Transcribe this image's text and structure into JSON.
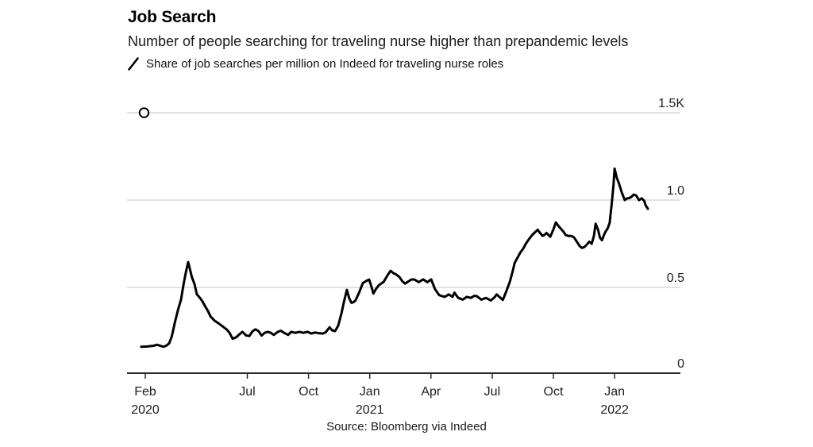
{
  "colors": {
    "background": "#ffffff",
    "line": "#000000",
    "grid": "#d9d9d9",
    "axis": "#2b2b2b",
    "text": "#1f1f1f",
    "marker_fill": "#ffffff",
    "marker_stroke": "#000000"
  },
  "chart_data": {
    "type": "line",
    "title": "Job Search",
    "subtitle": "Number of people searching for traveling nurse higher than prepandemic levels",
    "source": "Source: Bloomberg via Indeed",
    "legend_position": "top-left",
    "legend_marker": "slash-icon",
    "grid": "horizontal-only",
    "x_unit": "months since Feb 2020",
    "xlim": [
      -0.9,
      26.2
    ],
    "ylim": [
      0,
      1.5
    ],
    "y_ticks": [
      {
        "v": 0,
        "label": "0"
      },
      {
        "v": 0.5,
        "label": "0.5"
      },
      {
        "v": 1.0,
        "label": "1.0"
      },
      {
        "v": 1.5,
        "label": "1.5K"
      }
    ],
    "x_ticks": [
      {
        "m": 0,
        "month": "Feb",
        "year": "2020"
      },
      {
        "m": 5,
        "month": "Jul",
        "year": ""
      },
      {
        "m": 8,
        "month": "Oct",
        "year": ""
      },
      {
        "m": 11,
        "month": "Jan",
        "year": "2021"
      },
      {
        "m": 14,
        "month": "Apr",
        "year": ""
      },
      {
        "m": 17,
        "month": "Jul",
        "year": ""
      },
      {
        "m": 20,
        "month": "Oct",
        "year": ""
      },
      {
        "m": 23,
        "month": "Jan",
        "year": "2022"
      }
    ],
    "marker": {
      "m": -0.06,
      "v": 1.5
    },
    "series": [
      {
        "name": "Share of job searches per million on Indeed for traveling nurse roles",
        "points": [
          [
            -0.2,
            0.16
          ],
          [
            0.1,
            0.162
          ],
          [
            0.4,
            0.166
          ],
          [
            0.58,
            0.172
          ],
          [
            0.75,
            0.165
          ],
          [
            0.9,
            0.16
          ],
          [
            1.05,
            0.168
          ],
          [
            1.17,
            0.18
          ],
          [
            1.3,
            0.22
          ],
          [
            1.45,
            0.3
          ],
          [
            1.6,
            0.37
          ],
          [
            1.75,
            0.43
          ],
          [
            1.88,
            0.52
          ],
          [
            1.97,
            0.575
          ],
          [
            2.1,
            0.645
          ],
          [
            2.2,
            0.6
          ],
          [
            2.28,
            0.56
          ],
          [
            2.41,
            0.52
          ],
          [
            2.53,
            0.46
          ],
          [
            2.68,
            0.44
          ],
          [
            2.8,
            0.42
          ],
          [
            2.92,
            0.395
          ],
          [
            3.07,
            0.365
          ],
          [
            3.19,
            0.335
          ],
          [
            3.39,
            0.31
          ],
          [
            3.58,
            0.295
          ],
          [
            3.85,
            0.272
          ],
          [
            4.0,
            0.258
          ],
          [
            4.13,
            0.24
          ],
          [
            4.28,
            0.206
          ],
          [
            4.45,
            0.214
          ],
          [
            4.6,
            0.23
          ],
          [
            4.76,
            0.246
          ],
          [
            4.94,
            0.225
          ],
          [
            5.1,
            0.222
          ],
          [
            5.25,
            0.248
          ],
          [
            5.4,
            0.26
          ],
          [
            5.55,
            0.25
          ],
          [
            5.7,
            0.224
          ],
          [
            5.85,
            0.24
          ],
          [
            6.0,
            0.246
          ],
          [
            6.15,
            0.24
          ],
          [
            6.3,
            0.228
          ],
          [
            6.5,
            0.246
          ],
          [
            6.65,
            0.252
          ],
          [
            6.8,
            0.24
          ],
          [
            7.0,
            0.228
          ],
          [
            7.15,
            0.246
          ],
          [
            7.35,
            0.24
          ],
          [
            7.55,
            0.246
          ],
          [
            7.75,
            0.24
          ],
          [
            7.95,
            0.246
          ],
          [
            8.14,
            0.236
          ],
          [
            8.32,
            0.242
          ],
          [
            8.5,
            0.238
          ],
          [
            8.7,
            0.236
          ],
          [
            8.85,
            0.244
          ],
          [
            9.03,
            0.272
          ],
          [
            9.16,
            0.254
          ],
          [
            9.3,
            0.25
          ],
          [
            9.45,
            0.28
          ],
          [
            9.61,
            0.35
          ],
          [
            9.75,
            0.425
          ],
          [
            9.88,
            0.486
          ],
          [
            9.99,
            0.44
          ],
          [
            10.1,
            0.412
          ],
          [
            10.2,
            0.415
          ],
          [
            10.3,
            0.425
          ],
          [
            10.48,
            0.47
          ],
          [
            10.66,
            0.525
          ],
          [
            10.85,
            0.538
          ],
          [
            10.97,
            0.545
          ],
          [
            11.08,
            0.505
          ],
          [
            11.18,
            0.465
          ],
          [
            11.3,
            0.49
          ],
          [
            11.44,
            0.512
          ],
          [
            11.56,
            0.522
          ],
          [
            11.68,
            0.532
          ],
          [
            11.85,
            0.565
          ],
          [
            12.02,
            0.595
          ],
          [
            12.16,
            0.582
          ],
          [
            12.28,
            0.575
          ],
          [
            12.45,
            0.56
          ],
          [
            12.6,
            0.535
          ],
          [
            12.73,
            0.522
          ],
          [
            12.93,
            0.537
          ],
          [
            13.06,
            0.546
          ],
          [
            13.2,
            0.545
          ],
          [
            13.4,
            0.53
          ],
          [
            13.62,
            0.546
          ],
          [
            13.82,
            0.53
          ],
          [
            14.01,
            0.546
          ],
          [
            14.2,
            0.49
          ],
          [
            14.4,
            0.456
          ],
          [
            14.55,
            0.45
          ],
          [
            14.68,
            0.446
          ],
          [
            14.87,
            0.46
          ],
          [
            15.06,
            0.446
          ],
          [
            15.15,
            0.47
          ],
          [
            15.34,
            0.44
          ],
          [
            15.56,
            0.43
          ],
          [
            15.76,
            0.446
          ],
          [
            15.96,
            0.44
          ],
          [
            16.12,
            0.452
          ],
          [
            16.25,
            0.45
          ],
          [
            16.47,
            0.43
          ],
          [
            16.7,
            0.44
          ],
          [
            16.93,
            0.425
          ],
          [
            17.1,
            0.442
          ],
          [
            17.22,
            0.46
          ],
          [
            17.36,
            0.445
          ],
          [
            17.52,
            0.428
          ],
          [
            17.7,
            0.48
          ],
          [
            17.86,
            0.53
          ],
          [
            18.0,
            0.59
          ],
          [
            18.1,
            0.64
          ],
          [
            18.25,
            0.672
          ],
          [
            18.38,
            0.7
          ],
          [
            18.52,
            0.722
          ],
          [
            18.65,
            0.75
          ],
          [
            18.8,
            0.776
          ],
          [
            18.96,
            0.8
          ],
          [
            19.1,
            0.816
          ],
          [
            19.23,
            0.83
          ],
          [
            19.36,
            0.81
          ],
          [
            19.47,
            0.795
          ],
          [
            19.58,
            0.802
          ],
          [
            19.66,
            0.812
          ],
          [
            19.76,
            0.8
          ],
          [
            19.85,
            0.79
          ],
          [
            20.0,
            0.832
          ],
          [
            20.12,
            0.872
          ],
          [
            20.26,
            0.85
          ],
          [
            20.4,
            0.832
          ],
          [
            20.52,
            0.815
          ],
          [
            20.6,
            0.8
          ],
          [
            20.76,
            0.794
          ],
          [
            20.9,
            0.794
          ],
          [
            21.02,
            0.785
          ],
          [
            21.16,
            0.76
          ],
          [
            21.29,
            0.736
          ],
          [
            21.41,
            0.726
          ],
          [
            21.52,
            0.732
          ],
          [
            21.61,
            0.742
          ],
          [
            21.76,
            0.762
          ],
          [
            21.88,
            0.75
          ],
          [
            21.99,
            0.796
          ],
          [
            22.07,
            0.865
          ],
          [
            22.19,
            0.83
          ],
          [
            22.28,
            0.786
          ],
          [
            22.38,
            0.77
          ],
          [
            22.48,
            0.8
          ],
          [
            22.56,
            0.82
          ],
          [
            22.66,
            0.838
          ],
          [
            22.76,
            0.87
          ],
          [
            22.86,
            0.98
          ],
          [
            22.94,
            1.08
          ],
          [
            23.0,
            1.18
          ],
          [
            23.1,
            1.13
          ],
          [
            23.23,
            1.09
          ],
          [
            23.36,
            1.04
          ],
          [
            23.5,
            1.0
          ],
          [
            23.62,
            1.01
          ],
          [
            23.72,
            1.012
          ],
          [
            23.82,
            1.018
          ],
          [
            23.94,
            1.032
          ],
          [
            24.06,
            1.026
          ],
          [
            24.2,
            1.0
          ],
          [
            24.33,
            1.01
          ],
          [
            24.45,
            0.996
          ],
          [
            24.52,
            0.97
          ],
          [
            24.63,
            0.95
          ]
        ]
      }
    ]
  }
}
